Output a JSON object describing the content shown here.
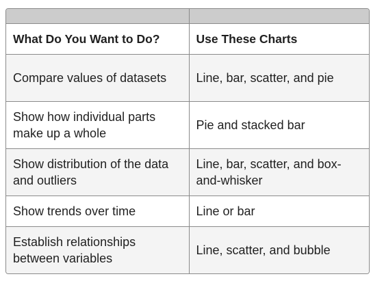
{
  "table": {
    "headers": [
      "What Do You Want to Do?",
      "Use These Charts"
    ],
    "rows": [
      [
        "Compare values of datasets",
        "Line, bar, scatter, and pie"
      ],
      [
        "Show how individual parts make up a whole",
        "Pie and stacked bar"
      ],
      [
        "Show distribution of the data and outliers",
        "Line, bar, scatter, and box-and-whisker"
      ],
      [
        "Show trends over time",
        "Line or bar"
      ],
      [
        "Establish relationships between variables",
        "Line, scatter, and bubble"
      ]
    ]
  }
}
